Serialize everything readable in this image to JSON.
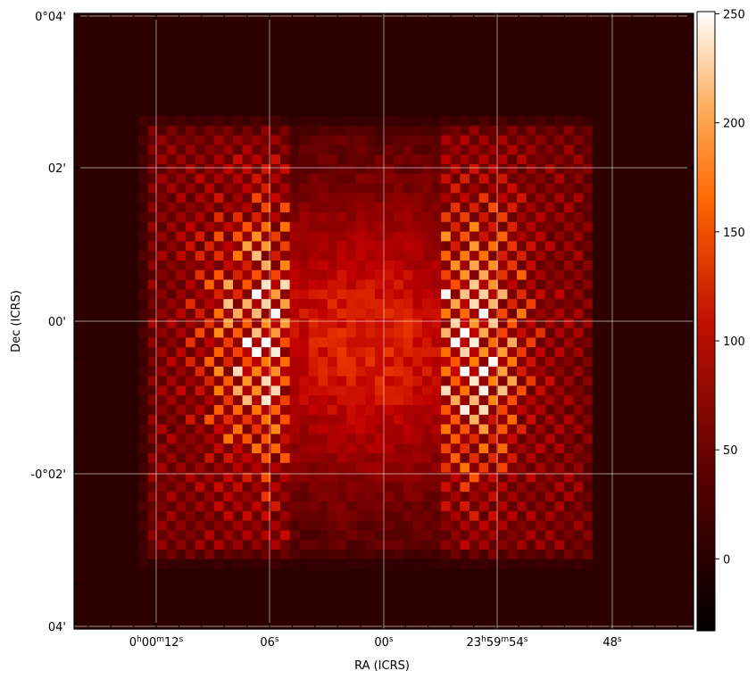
{
  "chart_data": {
    "type": "heatmap",
    "title": "",
    "xlabel": "RA (ICRS)",
    "ylabel": "Dec (ICRS)",
    "colormap": "gist_heat",
    "colors": {
      "frame": "#000000",
      "grid": "#ffffff",
      "background_value": 0
    },
    "grid": true,
    "legend": "colorbar-right",
    "x_ticks": [
      {
        "label_parts": [
          "0",
          "h",
          "00",
          "m",
          "12",
          "s"
        ],
        "value": "0h00m12s"
      },
      {
        "label_parts": [
          "06",
          "s"
        ],
        "value": "0h00m06s"
      },
      {
        "label_parts": [
          "00",
          "s"
        ],
        "value": "0h00m00s"
      },
      {
        "label_parts": [
          "23",
          "h",
          "59",
          "m",
          "54",
          "s"
        ],
        "value": "23h59m54s"
      },
      {
        "label_parts": [
          "48",
          "s"
        ],
        "value": "23h59m48s"
      }
    ],
    "y_ticks": [
      {
        "label": "0°04'",
        "value_arcmin": 4
      },
      {
        "label": "02'",
        "value_arcmin": 2
      },
      {
        "label": "00'",
        "value_arcmin": 0
      },
      {
        "label": "-0°02'",
        "value_arcmin": -2
      },
      {
        "label": "04'",
        "value_arcmin": -4
      }
    ],
    "colorbar": {
      "range": [
        -33,
        251
      ],
      "ticks": [
        {
          "label": "0",
          "value": 0
        },
        {
          "label": "50",
          "value": 50
        },
        {
          "label": "100",
          "value": 100
        },
        {
          "label": "150",
          "value": 150
        },
        {
          "label": "200",
          "value": 200
        },
        {
          "label": "250",
          "value": 250
        }
      ]
    },
    "data_description": "Pixel intensities: near 0 outside the mapped square field; ~80-140 in the smoothly brighter center; bright vertical striped/checkered columns on left and right sides reaching up to ~250 at the right-center and ~230 at the left-center.",
    "peak_value": 251,
    "background_value": 0
  }
}
